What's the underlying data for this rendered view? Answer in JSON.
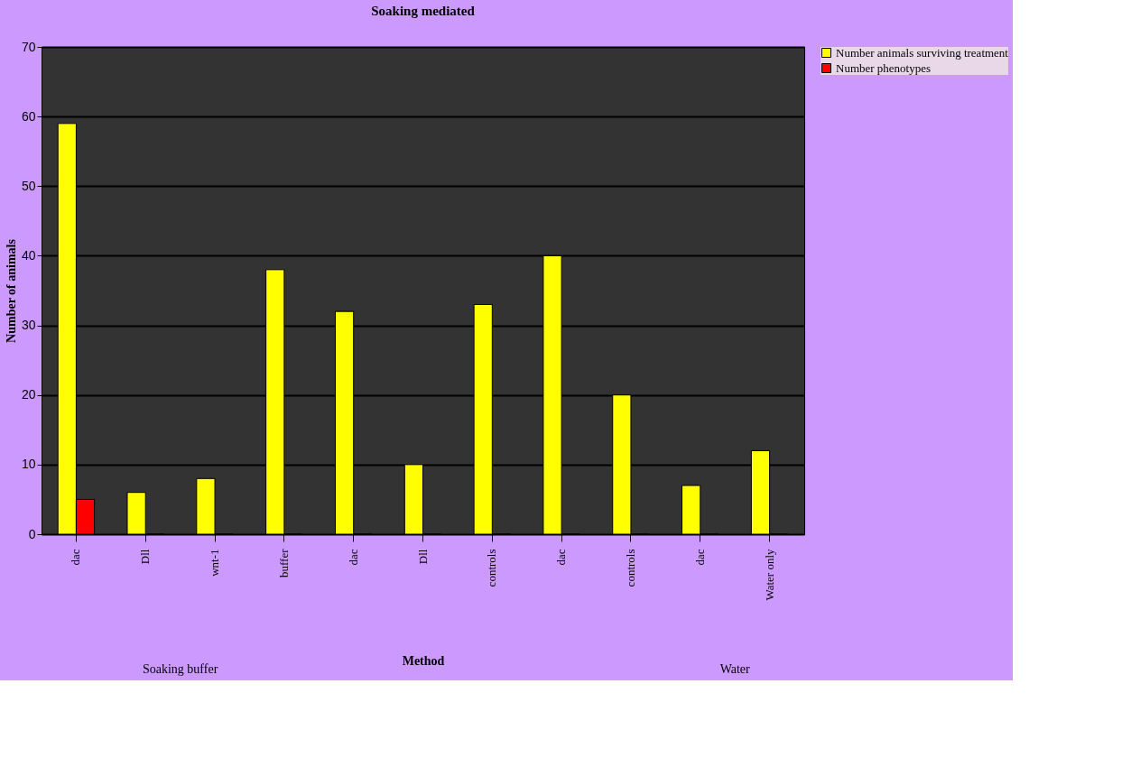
{
  "chart_data": {
    "type": "bar",
    "title": "Soaking mediated",
    "xlabel": "Method",
    "ylabel": "Number of animals",
    "categories": [
      "dac",
      "Dll",
      "wnt-1",
      "buffer",
      "dac",
      "Dll",
      "controls",
      "dac",
      "controls",
      "dac",
      "Water only"
    ],
    "series": [
      {
        "name": "Number animals surviving treatment",
        "color": "#ffff00",
        "values": [
          59,
          6,
          8,
          38,
          32,
          10,
          33,
          40,
          20,
          7,
          12
        ]
      },
      {
        "name": "Number phenotypes",
        "color": "#ff0000",
        "values": [
          5,
          0,
          0,
          0,
          0,
          0,
          0,
          0,
          0,
          0,
          0
        ]
      }
    ],
    "annotations": [
      "Soaking buffer",
      "Water"
    ],
    "ylim": [
      0,
      70
    ],
    "yticks": [
      0,
      10,
      20,
      30,
      40,
      50,
      60,
      70
    ],
    "grid": "y",
    "legend": "right"
  }
}
